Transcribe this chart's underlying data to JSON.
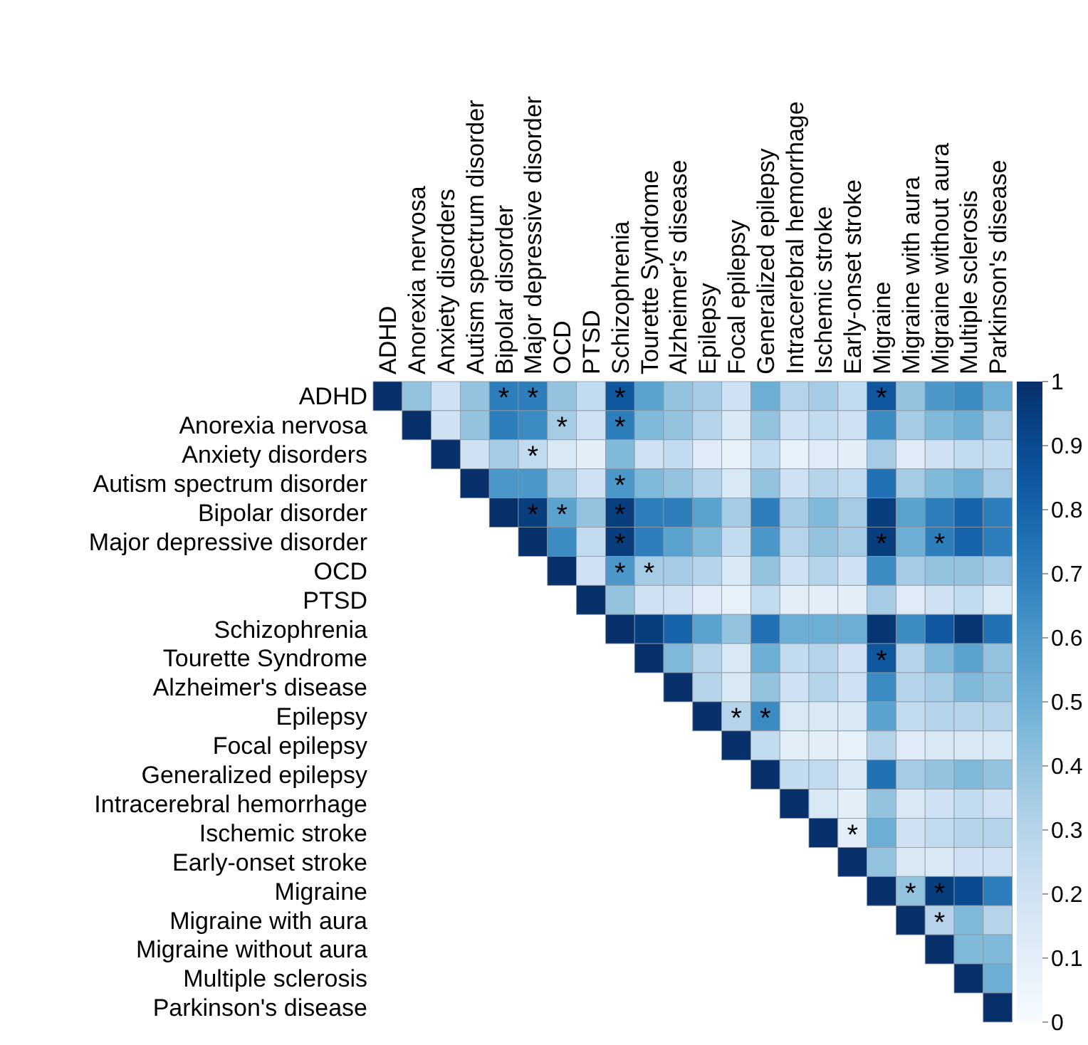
{
  "chart_data": {
    "type": "heatmap",
    "categories": [
      "ADHD",
      "Anorexia nervosa",
      "Anxiety disorders",
      "Autism spectrum disorder",
      "Bipolar disorder",
      "Major depressive disorder",
      "OCD",
      "PTSD",
      "Schizophrenia",
      "Tourette Syndrome",
      "Alzheimer's disease",
      "Epilepsy",
      "Focal epilepsy",
      "Generalized epilepsy",
      "Intracerebral hemorrhage",
      "Ischemic stroke",
      "Early-onset stroke",
      "Migraine",
      "Migraine with aura",
      "Migraine without aura",
      "Multiple sclerosis",
      "Parkinson's disease"
    ],
    "y_categories": [
      "ADHD",
      "Anorexia nervosa",
      "Anxiety disorders",
      "Autism spectrum disorder",
      "Bipolar disorder",
      "Major depressive disorder",
      "OCD",
      "PTSD",
      "Schizophrenia",
      "Tourette Syndrome",
      "Alzheimer's disease",
      "Epilepsy",
      "Focal epilepsy",
      "Generalized epilepsy",
      "Intracerebral hemorrhage",
      "Ischemic stroke",
      "Early-onset stroke",
      "Migraine",
      "Migraine with aura",
      "Migraine without aura",
      "Multiple sclerosis",
      "Parkinson's disease"
    ],
    "cells": [
      [
        1,
        0.4,
        0.2,
        0.4,
        0.7,
        0.7,
        0.4,
        0.25,
        0.85,
        0.55,
        0.4,
        0.35,
        0.2,
        0.5,
        0.3,
        0.35,
        0.25,
        0.85,
        0.4,
        0.6,
        0.65,
        0.5
      ],
      [
        null,
        1,
        0.2,
        0.4,
        0.7,
        0.65,
        0.35,
        0.2,
        0.7,
        0.45,
        0.4,
        0.3,
        0.15,
        0.4,
        0.2,
        0.25,
        0.2,
        0.65,
        0.35,
        0.45,
        0.5,
        0.35
      ],
      [
        null,
        null,
        1,
        0.2,
        0.35,
        0.25,
        0.15,
        0.1,
        0.45,
        0.2,
        0.25,
        0.12,
        0.08,
        0.25,
        0.08,
        0.12,
        0.1,
        0.35,
        0.12,
        0.2,
        0.25,
        0.25
      ],
      [
        null,
        null,
        null,
        1,
        0.6,
        0.6,
        0.35,
        0.2,
        0.6,
        0.45,
        0.4,
        0.3,
        0.15,
        0.4,
        0.2,
        0.3,
        0.25,
        0.75,
        0.35,
        0.45,
        0.5,
        0.35
      ],
      [
        null,
        null,
        null,
        null,
        1,
        0.95,
        0.55,
        0.4,
        0.95,
        0.7,
        0.7,
        0.55,
        0.35,
        0.7,
        0.35,
        0.45,
        0.35,
        0.95,
        0.55,
        0.7,
        0.8,
        0.7
      ],
      [
        null,
        null,
        null,
        null,
        null,
        1,
        0.65,
        0.25,
        0.95,
        0.7,
        0.55,
        0.45,
        0.25,
        0.6,
        0.3,
        0.4,
        0.35,
        0.95,
        0.5,
        0.7,
        0.8,
        0.7
      ],
      [
        null,
        null,
        null,
        null,
        null,
        null,
        1,
        0.2,
        0.6,
        0.35,
        0.35,
        0.3,
        0.15,
        0.4,
        0.2,
        0.3,
        0.2,
        0.65,
        0.35,
        0.4,
        0.4,
        0.35
      ],
      [
        null,
        null,
        null,
        null,
        null,
        null,
        null,
        1,
        0.4,
        0.2,
        0.2,
        0.12,
        0.08,
        0.25,
        0.1,
        0.1,
        0.1,
        0.35,
        0.12,
        0.2,
        0.25,
        0.15
      ],
      [
        null,
        null,
        null,
        null,
        null,
        null,
        null,
        null,
        1,
        0.95,
        0.8,
        0.55,
        0.4,
        0.75,
        0.5,
        0.5,
        0.5,
        0.98,
        0.65,
        0.85,
        0.98,
        0.75
      ],
      [
        null,
        null,
        null,
        null,
        null,
        null,
        null,
        null,
        null,
        1,
        0.45,
        0.3,
        0.15,
        0.5,
        0.25,
        0.3,
        0.2,
        0.85,
        0.3,
        0.45,
        0.55,
        0.4
      ],
      [
        null,
        null,
        null,
        null,
        null,
        null,
        null,
        null,
        null,
        null,
        1,
        0.3,
        0.15,
        0.4,
        0.2,
        0.3,
        0.2,
        0.65,
        0.3,
        0.35,
        0.45,
        0.4
      ],
      [
        null,
        null,
        null,
        null,
        null,
        null,
        null,
        null,
        null,
        null,
        null,
        1,
        0.3,
        0.65,
        0.15,
        0.15,
        0.15,
        0.55,
        0.25,
        0.3,
        0.3,
        0.3
      ],
      [
        null,
        null,
        null,
        null,
        null,
        null,
        null,
        null,
        null,
        null,
        null,
        null,
        1,
        0.25,
        0.1,
        0.1,
        0.08,
        0.3,
        0.12,
        0.15,
        0.15,
        0.15
      ],
      [
        null,
        null,
        null,
        null,
        null,
        null,
        null,
        null,
        null,
        null,
        null,
        null,
        null,
        1,
        0.25,
        0.25,
        0.15,
        0.75,
        0.35,
        0.4,
        0.45,
        0.4
      ],
      [
        null,
        null,
        null,
        null,
        null,
        null,
        null,
        null,
        null,
        null,
        null,
        null,
        null,
        null,
        1,
        0.15,
        0.1,
        0.4,
        0.15,
        0.2,
        0.25,
        0.2
      ],
      [
        null,
        null,
        null,
        null,
        null,
        null,
        null,
        null,
        null,
        null,
        null,
        null,
        null,
        null,
        null,
        1,
        0.1,
        0.5,
        0.2,
        0.25,
        0.3,
        0.3
      ],
      [
        null,
        null,
        null,
        null,
        null,
        null,
        null,
        null,
        null,
        null,
        null,
        null,
        null,
        null,
        null,
        null,
        1,
        0.4,
        0.15,
        0.15,
        0.2,
        0.2
      ],
      [
        null,
        null,
        null,
        null,
        null,
        null,
        null,
        null,
        null,
        null,
        null,
        null,
        null,
        null,
        null,
        null,
        null,
        1,
        0.4,
        0.95,
        0.9,
        0.7
      ],
      [
        null,
        null,
        null,
        null,
        null,
        null,
        null,
        null,
        null,
        null,
        null,
        null,
        null,
        null,
        null,
        null,
        null,
        null,
        1,
        0.3,
        0.45,
        0.3
      ],
      [
        null,
        null,
        null,
        null,
        null,
        null,
        null,
        null,
        null,
        null,
        null,
        null,
        null,
        null,
        null,
        null,
        null,
        null,
        null,
        1,
        0.45,
        0.45
      ],
      [
        null,
        null,
        null,
        null,
        null,
        null,
        null,
        null,
        null,
        null,
        null,
        null,
        null,
        null,
        null,
        null,
        null,
        null,
        null,
        null,
        1,
        0.5
      ],
      [
        null,
        null,
        null,
        null,
        null,
        null,
        null,
        null,
        null,
        null,
        null,
        null,
        null,
        null,
        null,
        null,
        null,
        null,
        null,
        null,
        null,
        1
      ]
    ],
    "cell_labels": [
      [
        null,
        null,
        null,
        null,
        "*",
        "*",
        null,
        null,
        "*",
        null,
        null,
        null,
        null,
        null,
        null,
        null,
        null,
        "*",
        null,
        null,
        null,
        null
      ],
      [
        null,
        null,
        null,
        null,
        null,
        null,
        "*",
        null,
        "*",
        null,
        null,
        null,
        null,
        null,
        null,
        null,
        null,
        null,
        null,
        null,
        null,
        null
      ],
      [
        null,
        null,
        null,
        null,
        null,
        "*",
        null,
        null,
        null,
        null,
        null,
        null,
        null,
        null,
        null,
        null,
        null,
        null,
        null,
        null,
        null,
        null
      ],
      [
        null,
        null,
        null,
        null,
        null,
        null,
        null,
        null,
        "*",
        null,
        null,
        null,
        null,
        null,
        null,
        null,
        null,
        null,
        null,
        null,
        null,
        null
      ],
      [
        null,
        null,
        null,
        null,
        null,
        "*",
        "*",
        null,
        "*",
        null,
        null,
        null,
        null,
        null,
        null,
        null,
        null,
        null,
        null,
        null,
        null,
        null
      ],
      [
        null,
        null,
        null,
        null,
        null,
        null,
        null,
        null,
        "*",
        null,
        null,
        null,
        null,
        null,
        null,
        null,
        null,
        "*",
        null,
        "*",
        null,
        null
      ],
      [
        null,
        null,
        null,
        null,
        null,
        null,
        null,
        null,
        "*",
        "*",
        null,
        null,
        null,
        null,
        null,
        null,
        null,
        null,
        null,
        null,
        null,
        null
      ],
      [
        null,
        null,
        null,
        null,
        null,
        null,
        null,
        null,
        null,
        null,
        null,
        null,
        null,
        null,
        null,
        null,
        null,
        null,
        null,
        null,
        null,
        null
      ],
      [
        null,
        null,
        null,
        null,
        null,
        null,
        null,
        null,
        null,
        null,
        null,
        null,
        null,
        null,
        null,
        null,
        null,
        null,
        null,
        null,
        null,
        null
      ],
      [
        null,
        null,
        null,
        null,
        null,
        null,
        null,
        null,
        null,
        null,
        null,
        null,
        null,
        null,
        null,
        null,
        null,
        "*",
        null,
        null,
        null,
        null
      ],
      [
        null,
        null,
        null,
        null,
        null,
        null,
        null,
        null,
        null,
        null,
        null,
        null,
        null,
        null,
        null,
        null,
        null,
        null,
        null,
        null,
        null,
        null
      ],
      [
        null,
        null,
        null,
        null,
        null,
        null,
        null,
        null,
        null,
        null,
        null,
        null,
        "*",
        "*",
        null,
        null,
        null,
        null,
        null,
        null,
        null,
        null
      ],
      [
        null,
        null,
        null,
        null,
        null,
        null,
        null,
        null,
        null,
        null,
        null,
        null,
        null,
        null,
        null,
        null,
        null,
        null,
        null,
        null,
        null,
        null
      ],
      [
        null,
        null,
        null,
        null,
        null,
        null,
        null,
        null,
        null,
        null,
        null,
        null,
        null,
        null,
        null,
        null,
        null,
        null,
        null,
        null,
        null,
        null
      ],
      [
        null,
        null,
        null,
        null,
        null,
        null,
        null,
        null,
        null,
        null,
        null,
        null,
        null,
        null,
        null,
        null,
        null,
        null,
        null,
        null,
        null,
        null
      ],
      [
        null,
        null,
        null,
        null,
        null,
        null,
        null,
        null,
        null,
        null,
        null,
        null,
        null,
        null,
        null,
        null,
        "*",
        null,
        null,
        null,
        null,
        null
      ],
      [
        null,
        null,
        null,
        null,
        null,
        null,
        null,
        null,
        null,
        null,
        null,
        null,
        null,
        null,
        null,
        null,
        null,
        null,
        null,
        null,
        null,
        null
      ],
      [
        null,
        null,
        null,
        null,
        null,
        null,
        null,
        null,
        null,
        null,
        null,
        null,
        null,
        null,
        null,
        null,
        null,
        null,
        "*",
        "*",
        null,
        null
      ],
      [
        null,
        null,
        null,
        null,
        null,
        null,
        null,
        null,
        null,
        null,
        null,
        null,
        null,
        null,
        null,
        null,
        null,
        null,
        null,
        "*",
        null,
        null
      ],
      [
        null,
        null,
        null,
        null,
        null,
        null,
        null,
        null,
        null,
        null,
        null,
        null,
        null,
        null,
        null,
        null,
        null,
        null,
        null,
        null,
        null,
        null
      ],
      [
        null,
        null,
        null,
        null,
        null,
        null,
        null,
        null,
        null,
        null,
        null,
        null,
        null,
        null,
        null,
        null,
        null,
        null,
        null,
        null,
        null,
        null
      ],
      [
        null,
        null,
        null,
        null,
        null,
        null,
        null,
        null,
        null,
        null,
        null,
        null,
        null,
        null,
        null,
        null,
        null,
        null,
        null,
        null,
        null,
        null
      ]
    ],
    "clim": [
      0,
      1
    ],
    "cticks": [
      0,
      0.1,
      0.2,
      0.3,
      0.4,
      0.5,
      0.6,
      0.7,
      0.8,
      0.9,
      1
    ]
  }
}
